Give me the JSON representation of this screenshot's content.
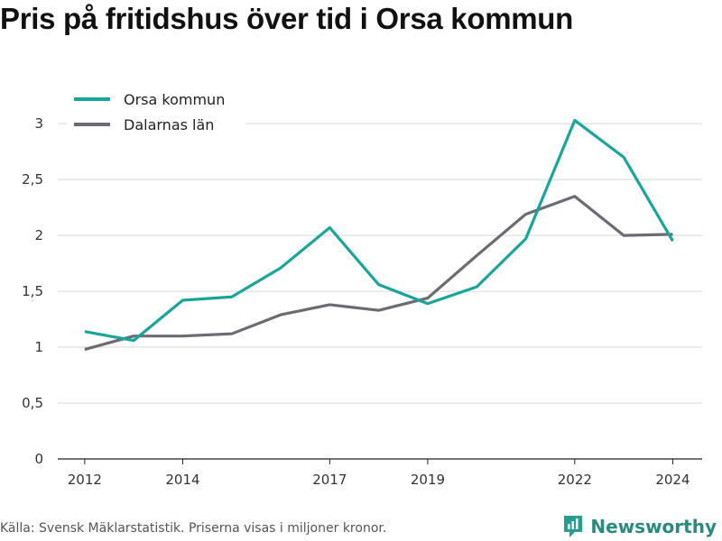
{
  "title": "Pris på fritidshus över tid i Orsa kommun",
  "source": "Källa: Svensk Mäklarstatistik. Priserna visas i miljoner kronor.",
  "brand": {
    "name": "Newsworthy",
    "icon": "newsworthy-logo-icon",
    "color": "#2a9d91"
  },
  "chart_data": {
    "type": "line",
    "title": "Pris på fritidshus över tid i Orsa kommun",
    "xlabel": "",
    "ylabel": "",
    "x": [
      2012,
      2013,
      2014,
      2015,
      2016,
      2017,
      2018,
      2019,
      2020,
      2021,
      2022,
      2023,
      2024
    ],
    "x_ticks": [
      "2012",
      "2014",
      "2017",
      "2019",
      "2022",
      "2024"
    ],
    "y_ticks": [
      "0",
      "0,5",
      "1",
      "1,5",
      "2",
      "2,5",
      "3"
    ],
    "ylim": [
      0,
      3.3
    ],
    "xlim": [
      2011.45,
      2024.6
    ],
    "grid": true,
    "legend_position": "top-left",
    "series": [
      {
        "name": "Orsa kommun",
        "color": "#1aa59a",
        "values": [
          1.14,
          1.06,
          1.42,
          1.45,
          1.71,
          2.07,
          1.56,
          1.39,
          1.54,
          1.97,
          3.03,
          2.7,
          1.95
        ]
      },
      {
        "name": "Dalarnas län",
        "color": "#6b6b73",
        "values": [
          0.98,
          1.1,
          1.1,
          1.12,
          1.29,
          1.38,
          1.33,
          1.44,
          1.82,
          2.19,
          2.35,
          2.0,
          2.01
        ]
      }
    ]
  }
}
